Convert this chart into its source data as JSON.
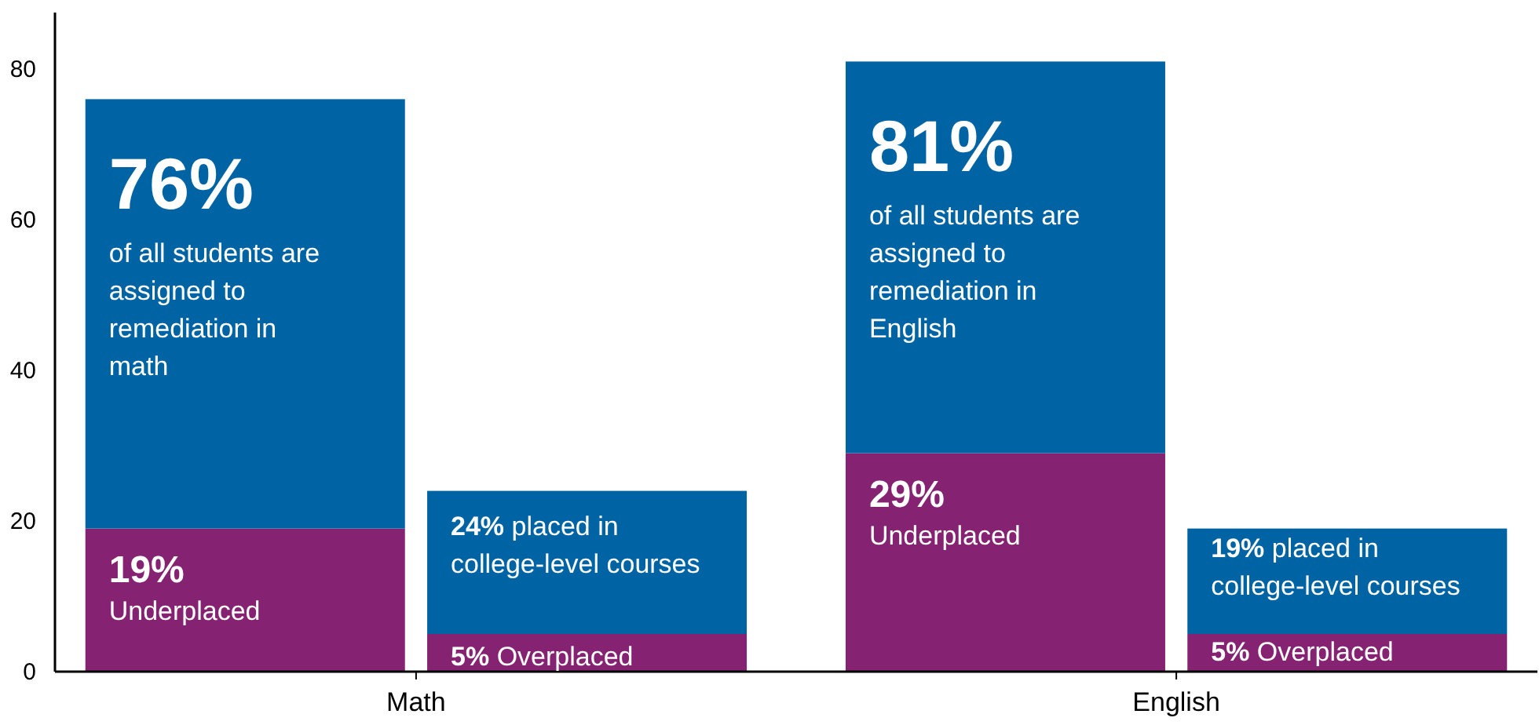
{
  "chart_data": {
    "type": "bar",
    "stacked": true,
    "categories": [
      null,
      null,
      null,
      null
    ],
    "series": [
      {
        "color": "#862272",
        "values": [
          19,
          5,
          29,
          5
        ]
      },
      {
        "color": "#0064a4",
        "values": [
          57,
          19,
          52,
          14
        ]
      }
    ],
    "ylim": [
      0,
      87.5
    ],
    "yticks": [
      0,
      20,
      40,
      60,
      80
    ],
    "grid": false,
    "annotations": [
      "Math",
      "English",
      "76%",
      "of all students are assigned to remediation in math",
      "19% Underplaced",
      "24% placed in college-level courses",
      "5% Overplaced",
      "81%",
      "of all students are assigned to remediation in English",
      "29% Underplaced",
      "19% placed in college-level courses",
      "5% Overplaced"
    ]
  }
}
